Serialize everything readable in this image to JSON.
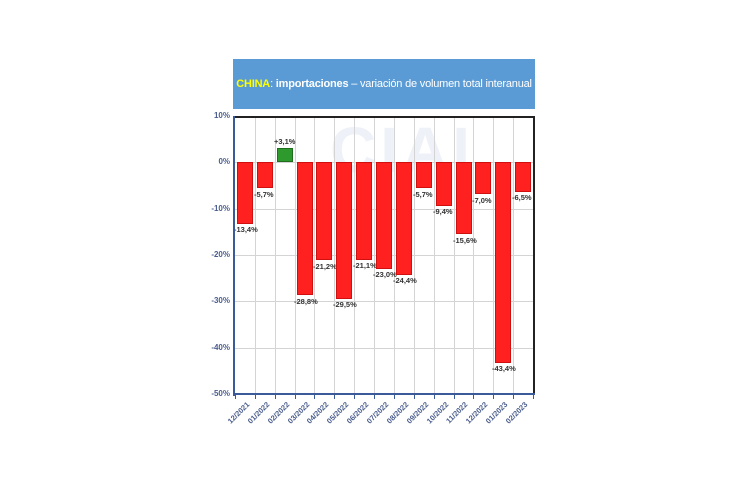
{
  "title": {
    "country": "CHINA",
    "separator": ": ",
    "bold_part": "importaciones",
    "rest": " – variación de volumen total interanual"
  },
  "watermark": "CIAI",
  "colors": {
    "title_bg": "#5b9bd5",
    "country_text": "#ffff00",
    "negative_bar": "#ff2020",
    "positive_bar": "#2e9a2e",
    "axis_text": "#4a5d8c"
  },
  "y_ticks": [
    "10%",
    "0%",
    "-10%",
    "-20%",
    "-30%",
    "-40%",
    "-50%"
  ],
  "chart_data": {
    "type": "bar",
    "title": "CHINA: importaciones – variación de volumen total interanual",
    "xlabel": "",
    "ylabel": "",
    "ylim": [
      -50,
      10
    ],
    "grid": true,
    "legend": null,
    "categories": [
      "12/2021",
      "01/2022",
      "02/2022",
      "03/2022",
      "04/2022",
      "05/2022",
      "06/2022",
      "07/2022",
      "08/2022",
      "09/2022",
      "10/2022",
      "11/2022",
      "12/2022",
      "01/2023",
      "02/2023"
    ],
    "values": [
      -13.4,
      -5.7,
      3.1,
      -28.8,
      -21.2,
      -29.5,
      -21.1,
      -23.0,
      -24.4,
      -5.7,
      -9.4,
      -15.6,
      -7.0,
      -43.4,
      -6.5
    ],
    "labels": [
      "-13,4%",
      "-5,7%",
      "+3,1%",
      "-28,8%",
      "-21,2%",
      "-29,5%",
      "-21,1%",
      "-23,0%",
      "-24,4%",
      "-5,7%",
      "-9,4%",
      "-15,6%",
      "-7,0%",
      "-43,4%",
      "-6,5%"
    ]
  }
}
